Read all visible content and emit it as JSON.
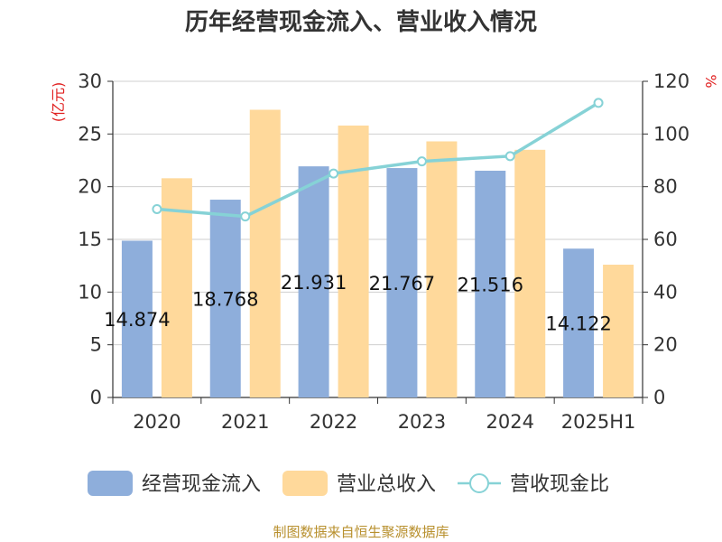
{
  "chart_data": {
    "type": "bar",
    "title": "历年经营现金流入、营业收入情况",
    "categories": [
      "2020",
      "2021",
      "2022",
      "2023",
      "2024",
      "2025H1"
    ],
    "series": [
      {
        "name": "经营现金流入",
        "kind": "bar",
        "axis": "left",
        "color": "#8eaedb",
        "values": [
          14.874,
          18.768,
          21.931,
          21.767,
          21.516,
          14.122
        ],
        "labels": [
          "14.874",
          "18.768",
          "21.931",
          "21.767",
          "21.516",
          "14.122"
        ]
      },
      {
        "name": "营业总收入",
        "kind": "bar",
        "axis": "left",
        "color": "#ffd99b",
        "values": [
          20.8,
          27.3,
          25.8,
          24.3,
          23.5,
          12.6
        ]
      },
      {
        "name": "营收现金比",
        "kind": "line",
        "axis": "right",
        "color": "#86d2d6",
        "values": [
          71.5,
          68.7,
          85.0,
          89.6,
          91.6,
          111.8
        ]
      }
    ],
    "ylabel": "(亿元)",
    "y2label": "%",
    "ylim": [
      0,
      30
    ],
    "yticks": [
      "0",
      "5",
      "10",
      "15",
      "20",
      "25",
      "30"
    ],
    "y2lim": [
      0,
      120
    ],
    "y2ticks": [
      "0",
      "20",
      "40",
      "60",
      "80",
      "100",
      "120"
    ],
    "grid": true,
    "legend_position": "bottom"
  },
  "footer": {
    "source": "制图数据来自恒生聚源数据库"
  }
}
